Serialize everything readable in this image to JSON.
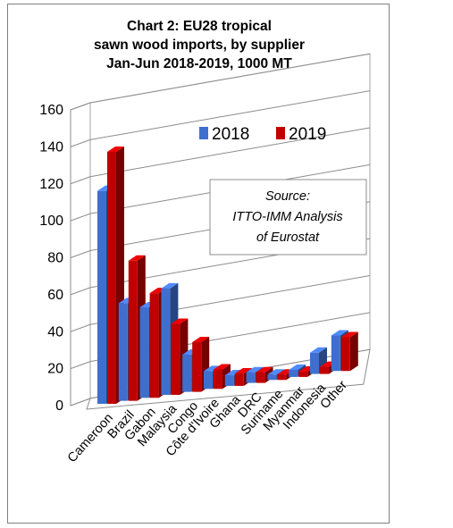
{
  "chart_data": {
    "type": "bar",
    "title_lines": [
      "Chart 2: EU28 tropical",
      "sawn wood imports, by supplier",
      "Jan-Jun 2018-2019, 1000 MT"
    ],
    "categories": [
      "Cameroon",
      "Brazil",
      "Gabon",
      "Malaysia",
      "Congo",
      "Côte d'Ivoire",
      "Ghana",
      "DRC",
      "Suriname",
      "Myanmar",
      "Indonesia",
      "Other"
    ],
    "series": [
      {
        "name": "2018",
        "color": "#3f6fce",
        "values": [
          120,
          55,
          51,
          60,
          21,
          10,
          6,
          6,
          3,
          4,
          12,
          20
        ]
      },
      {
        "name": "2019",
        "color": "#c00000",
        "values": [
          142,
          79,
          59,
          40,
          28,
          11,
          7,
          6,
          3,
          3,
          4,
          19
        ]
      }
    ],
    "yticks": [
      "0",
      "20",
      "40",
      "60",
      "80",
      "100",
      "120",
      "140",
      "160"
    ],
    "ylim": [
      0,
      160
    ],
    "annotation": [
      "Source:",
      "ITTO-IMM Analysis",
      "of Eurostat"
    ],
    "chart_style": "3d-clustered-column",
    "grid": true,
    "legend_position": "top-right"
  }
}
